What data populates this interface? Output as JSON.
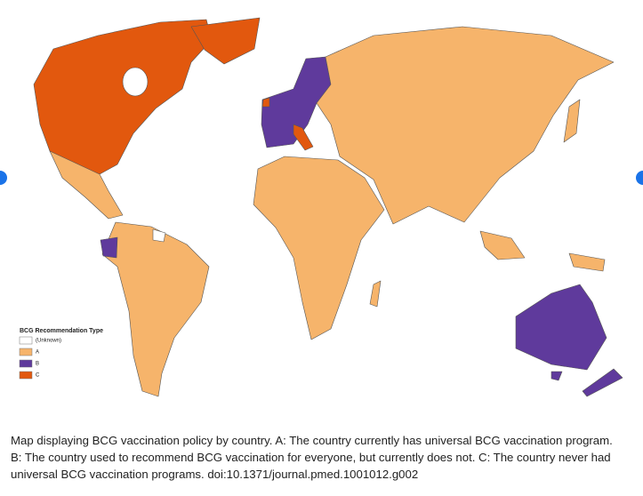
{
  "legend": {
    "title": "BCG Recommendation Type",
    "items": [
      {
        "label": "(Unknown)",
        "color": "#ffffff"
      },
      {
        "label": "A",
        "color": "#f6b46b"
      },
      {
        "label": "B",
        "color": "#5f3a9c"
      },
      {
        "label": "C",
        "color": "#e2580e"
      }
    ]
  },
  "caption": "Map displaying BCG vaccination policy by country. A: The country currently has universal BCG vaccination program. B: The country used to recommend BCG vaccination for everyone, but currently does not. C: The country never had universal BCG vaccination programs. doi:10.1371/journal.pmed.1001012.g002"
}
